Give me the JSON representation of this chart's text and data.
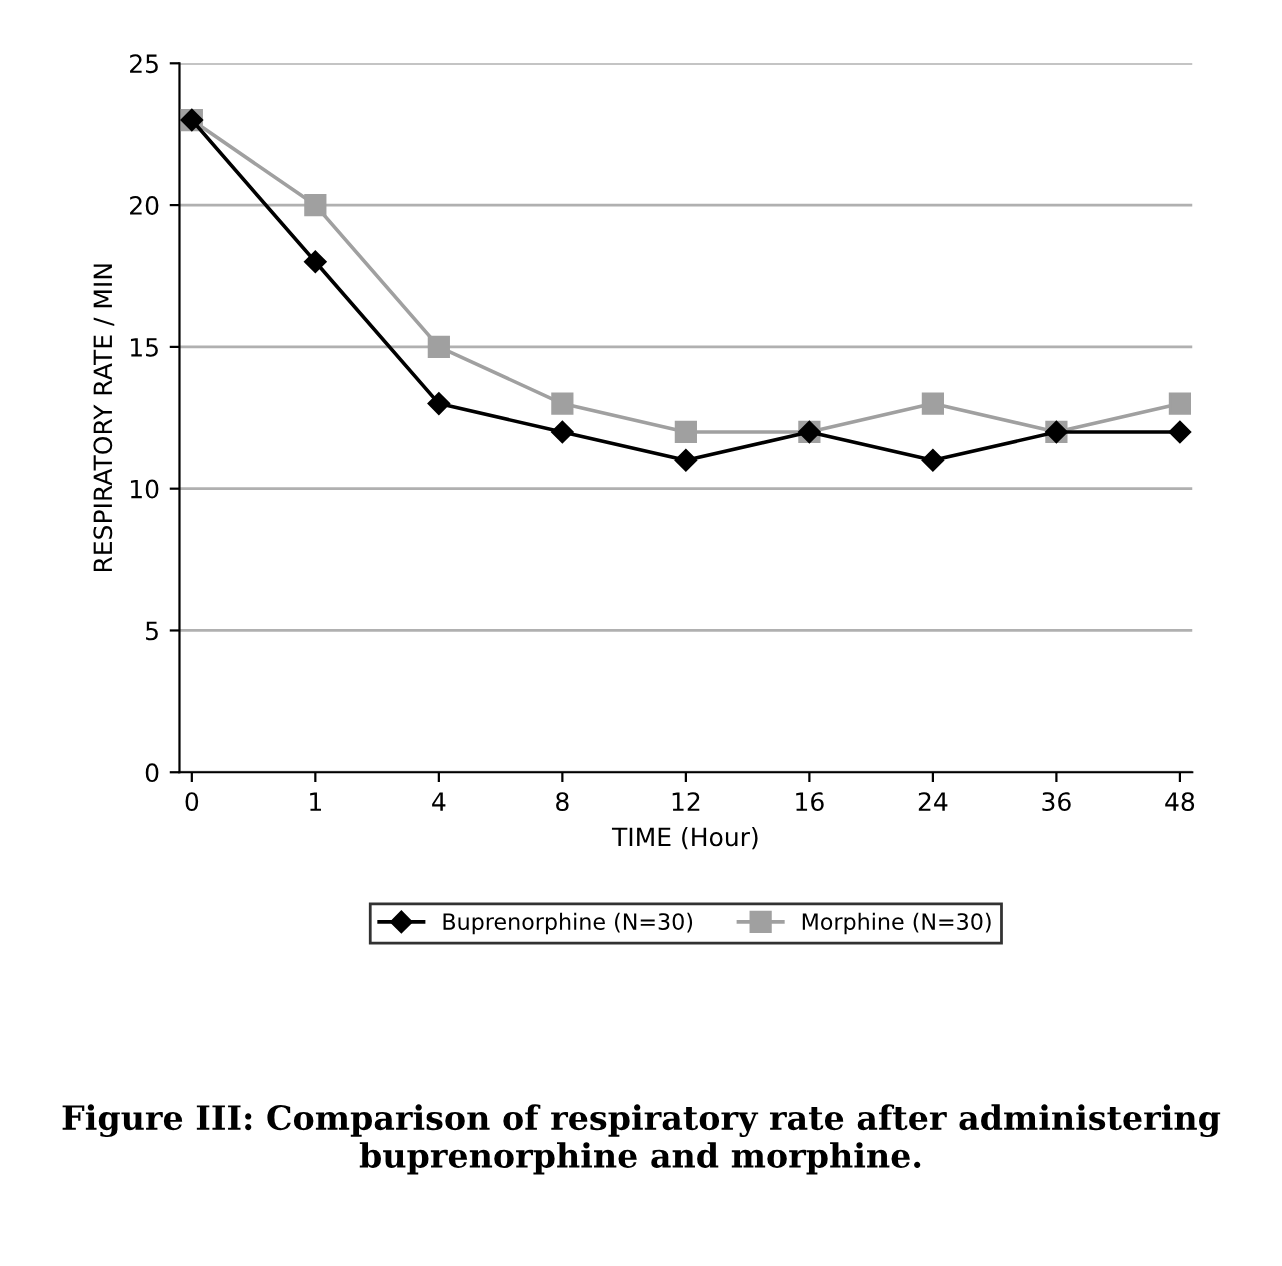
{
  "chart_data": {
    "type": "line",
    "xlabel": "TIME (Hour)",
    "ylabel": "RESPIRATORY RATE / MIN",
    "categories": [
      "0",
      "1",
      "4",
      "8",
      "12",
      "16",
      "24",
      "36",
      "48"
    ],
    "series": [
      {
        "name": "Buprenorphine (N=30)",
        "color": "#000000",
        "marker": "diamond",
        "values": [
          23,
          18,
          13,
          12,
          11,
          12,
          11,
          12,
          12
        ]
      },
      {
        "name": "Morphine (N=30)",
        "color": "#a0a0a0",
        "marker": "square",
        "values": [
          23,
          20,
          15,
          13,
          12,
          12,
          13,
          12,
          13
        ]
      }
    ],
    "ylim": [
      0,
      25
    ],
    "yticks": [
      0,
      5,
      10,
      15,
      20,
      25
    ],
    "grid": "y",
    "legend": "bottom",
    "line_style": "solid",
    "annotations": [
      "Figure III: Comparison of respiratory rate after administering buprenorphine and morphine."
    ]
  }
}
